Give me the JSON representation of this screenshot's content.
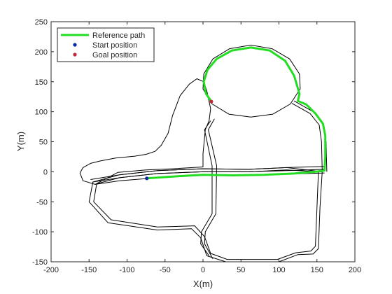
{
  "colors": {
    "reference_path": "#22dd22",
    "start_marker": "#0a2aa0",
    "goal_marker": "#c0283c",
    "road": "#000000",
    "axes": "#262626"
  },
  "chart_data": {
    "type": "line",
    "xlabel": "X(m)",
    "ylabel": "Y(m)",
    "xlim": [
      -200,
      200
    ],
    "ylim": [
      -150,
      250
    ],
    "xticks": [
      "-200",
      "-150",
      "-100",
      "-50",
      "0",
      "50",
      "100",
      "150",
      "200"
    ],
    "yticks": [
      "-150",
      "-100",
      "-50",
      "0",
      "50",
      "100",
      "150",
      "200",
      "250"
    ],
    "grid": false,
    "legend_position": "top-left",
    "legend": {
      "reference": "Reference path",
      "start": "Start position",
      "goal": "Goal position"
    },
    "start_position": [
      -74,
      -11
    ],
    "goal_position": [
      11,
      117
    ],
    "reference_path": [
      [
        -74,
        -11
      ],
      [
        -40,
        -8
      ],
      [
        0,
        -5
      ],
      [
        40,
        -6
      ],
      [
        80,
        -5
      ],
      [
        120,
        -3
      ],
      [
        148,
        0
      ],
      [
        160,
        2
      ],
      [
        161,
        25
      ],
      [
        161,
        60
      ],
      [
        158,
        80
      ],
      [
        148,
        97
      ],
      [
        136,
        112
      ],
      [
        125,
        118
      ],
      [
        127,
        130
      ],
      [
        120,
        160
      ],
      [
        108,
        185
      ],
      [
        88,
        202
      ],
      [
        63,
        207
      ],
      [
        38,
        202
      ],
      [
        18,
        188
      ],
      [
        6,
        170
      ],
      [
        1,
        150
      ],
      [
        4,
        130
      ],
      [
        11,
        117
      ]
    ],
    "road_network": [
      {
        "name": "loop-circle",
        "closed": true,
        "points": [
          [
            63,
            211
          ],
          [
            91,
            205
          ],
          [
            114,
            188
          ],
          [
            127,
            163
          ],
          [
            128,
            138
          ],
          [
            115,
            113
          ],
          [
            92,
            96
          ],
          [
            63,
            91
          ],
          [
            34,
            96
          ],
          [
            12,
            113
          ],
          [
            0,
            138
          ],
          [
            1,
            163
          ],
          [
            13,
            188
          ],
          [
            35,
            205
          ]
        ]
      },
      {
        "name": "main-road-upper",
        "points": [
          [
            -148,
            -13
          ],
          [
            -110,
            -5
          ],
          [
            -60,
            2
          ],
          [
            0,
            5
          ],
          [
            60,
            4
          ],
          [
            110,
            7
          ],
          [
            160,
            9
          ]
        ]
      },
      {
        "name": "main-road-middle",
        "points": [
          [
            -145,
            -17
          ],
          [
            -110,
            -10
          ],
          [
            -60,
            -3
          ],
          [
            0,
            0
          ],
          [
            60,
            0
          ],
          [
            110,
            2
          ],
          [
            160,
            4
          ]
        ]
      },
      {
        "name": "main-road-lower",
        "points": [
          [
            -142,
            -21
          ],
          [
            -110,
            -15
          ],
          [
            -60,
            -10
          ],
          [
            0,
            -6
          ],
          [
            60,
            -6
          ],
          [
            110,
            -4
          ],
          [
            160,
            -2
          ]
        ]
      },
      {
        "name": "south-loop-outer",
        "closed": true,
        "points": [
          [
            -145,
            -17
          ],
          [
            -150,
            -50
          ],
          [
            -125,
            -85
          ],
          [
            -60,
            -97
          ],
          [
            -15,
            -95
          ],
          [
            -3,
            -110
          ],
          [
            5,
            -140
          ],
          [
            30,
            -150
          ],
          [
            100,
            -150
          ],
          [
            125,
            -138
          ],
          [
            145,
            -137
          ],
          [
            152,
            -128
          ],
          [
            154,
            -60
          ],
          [
            157,
            0
          ],
          [
            110,
            7
          ],
          [
            60,
            4
          ],
          [
            0,
            5
          ],
          [
            -60,
            2
          ],
          [
            -110,
            -5
          ]
        ]
      },
      {
        "name": "south-loop-inner",
        "closed": true,
        "points": [
          [
            -140,
            -20
          ],
          [
            -144,
            -50
          ],
          [
            -121,
            -80
          ],
          [
            -60,
            -92
          ],
          [
            -11,
            -90
          ],
          [
            2,
            -108
          ],
          [
            10,
            -136
          ],
          [
            32,
            -146
          ],
          [
            98,
            -146
          ],
          [
            122,
            -135
          ],
          [
            142,
            -132
          ],
          [
            148,
            -124
          ],
          [
            150,
            -60
          ],
          [
            152,
            0
          ],
          [
            110,
            3
          ],
          [
            60,
            0
          ],
          [
            0,
            0
          ],
          [
            -60,
            -3
          ],
          [
            -110,
            -10
          ]
        ]
      },
      {
        "name": "connector-left",
        "points": [
          [
            10,
            85
          ],
          [
            2,
            70
          ],
          [
            12,
            10
          ],
          [
            12,
            -70
          ],
          [
            -2,
            -100
          ],
          [
            -3,
            -120
          ],
          [
            8,
            -140
          ]
        ]
      },
      {
        "name": "connector-right",
        "points": [
          [
            15,
            88
          ],
          [
            7,
            70
          ],
          [
            18,
            10
          ],
          [
            17,
            -70
          ],
          [
            3,
            -100
          ],
          [
            2,
            -120
          ],
          [
            13,
            -145
          ]
        ]
      },
      {
        "name": "east-link-outer",
        "points": [
          [
            120,
            118
          ],
          [
            145,
            100
          ],
          [
            158,
            80
          ],
          [
            162,
            50
          ],
          [
            163,
            0
          ]
        ]
      },
      {
        "name": "east-link-inner",
        "points": [
          [
            117,
            114
          ],
          [
            141,
            97
          ],
          [
            153,
            78
          ],
          [
            156,
            50
          ],
          [
            157,
            2
          ]
        ]
      },
      {
        "name": "north-west-area",
        "closed": true,
        "points": [
          [
            -142,
            -21
          ],
          [
            -158,
            -15
          ],
          [
            -162,
            -2
          ],
          [
            -158,
            7
          ],
          [
            -148,
            14
          ],
          [
            -135,
            18
          ],
          [
            -115,
            23
          ],
          [
            -90,
            26
          ],
          [
            -75,
            29
          ],
          [
            -63,
            34
          ],
          [
            -55,
            44
          ],
          [
            -46,
            64
          ],
          [
            -40,
            94
          ],
          [
            -30,
            127
          ],
          [
            -18,
            146
          ],
          [
            -8,
            155
          ],
          [
            1,
            150
          ],
          [
            5,
            135
          ],
          [
            10,
            105
          ],
          [
            8,
            85
          ],
          [
            3,
            70
          ],
          [
            0,
            30
          ],
          [
            0,
            8
          ],
          [
            -40,
            5
          ],
          [
            -75,
            3
          ],
          [
            -112,
            -1
          ]
        ]
      }
    ]
  }
}
